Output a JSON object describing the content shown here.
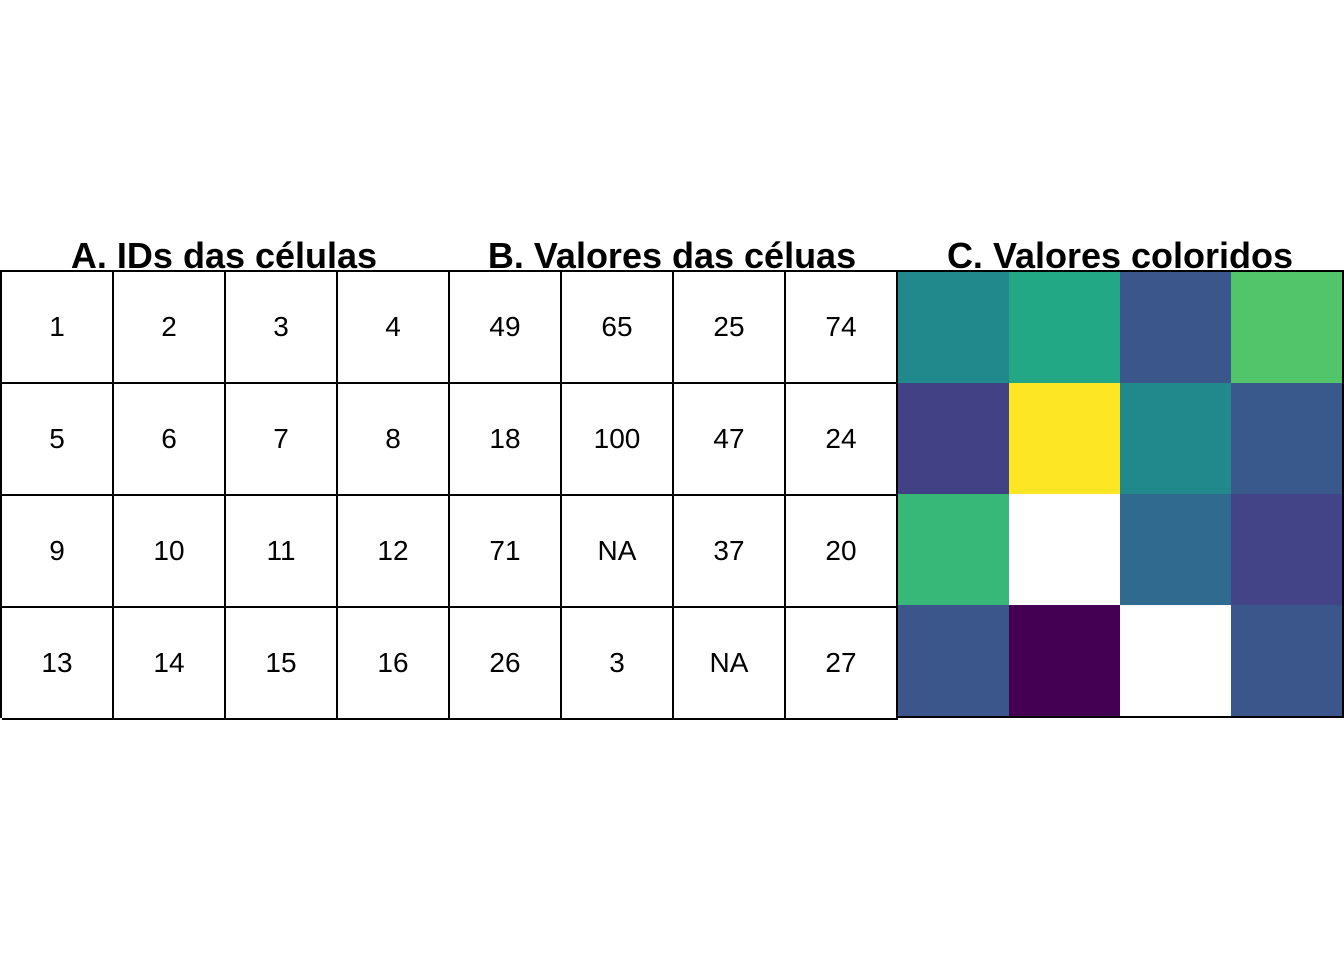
{
  "panels": {
    "ids": {
      "title": "A. IDs das células",
      "cells": [
        "1",
        "2",
        "3",
        "4",
        "5",
        "6",
        "7",
        "8",
        "9",
        "10",
        "11",
        "12",
        "13",
        "14",
        "15",
        "16"
      ]
    },
    "values": {
      "title": "B. Valores das céluas",
      "cells": [
        "49",
        "65",
        "25",
        "74",
        "18",
        "100",
        "47",
        "24",
        "71",
        "NA",
        "37",
        "20",
        "26",
        "3",
        "NA",
        "27"
      ]
    },
    "colored": {
      "title": "C. Valores coloridos",
      "colors": [
        "#21898c",
        "#22a884",
        "#3a568b",
        "#52c56a",
        "#424186",
        "#fde725",
        "#21898c",
        "#39588b",
        "#37b878",
        "#ffffff",
        "#306a8e",
        "#434387",
        "#3a568b",
        "#440154",
        "#ffffff",
        "#3a568b"
      ]
    }
  },
  "chart_data": {
    "type": "heatmap",
    "rows": 4,
    "cols": 4,
    "cell_ids": [
      [
        1,
        2,
        3,
        4
      ],
      [
        5,
        6,
        7,
        8
      ],
      [
        9,
        10,
        11,
        12
      ],
      [
        13,
        14,
        15,
        16
      ]
    ],
    "values": [
      [
        49,
        65,
        25,
        74
      ],
      [
        18,
        100,
        47,
        24
      ],
      [
        71,
        null,
        37,
        20
      ],
      [
        26,
        3,
        null,
        27
      ]
    ],
    "colormap": "viridis",
    "na_color": "#ffffff"
  }
}
